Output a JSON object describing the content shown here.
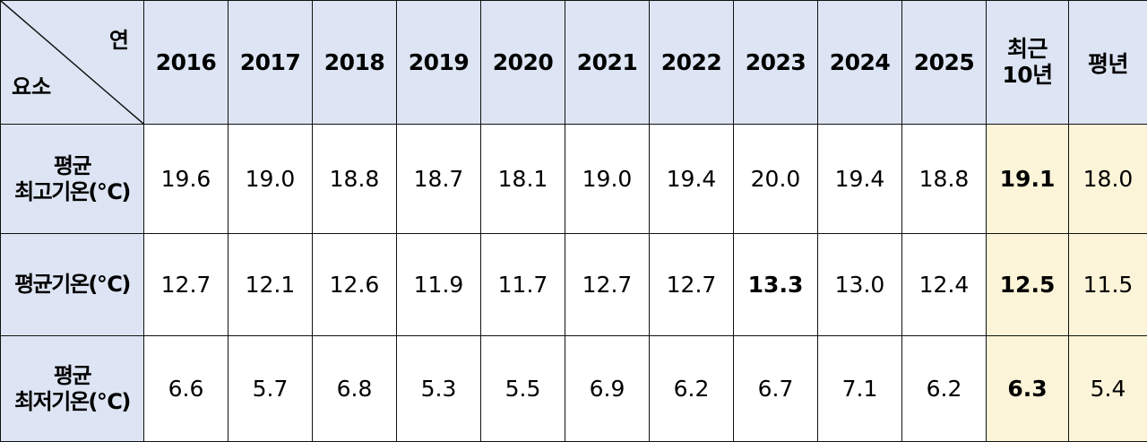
{
  "table": {
    "corner_top": "연",
    "corner_bottom": "요소",
    "headers": [
      "2016",
      "2017",
      "2018",
      "2019",
      "2020",
      "2021",
      "2022",
      "2023",
      "2024",
      "2025"
    ],
    "recent_header_line1": "최근",
    "recent_header_line2": "10년",
    "normal_header": "평년",
    "highlight_color": "#fcf4d8",
    "header_color": "#dde5f4",
    "rows": [
      {
        "label_line1": "평균",
        "label_line2": "최고기온(℃)",
        "values": [
          "19.6",
          "19.0",
          "18.8",
          "18.7",
          "18.1",
          "19.0",
          "19.4",
          "20.0",
          "19.4",
          "18.8"
        ],
        "recent": "19.1",
        "normal": "18.0"
      },
      {
        "label_line1": "평균기온(℃)",
        "label_line2": "",
        "values": [
          "12.7",
          "12.1",
          "12.6",
          "11.9",
          "11.7",
          "12.7",
          "12.7",
          "13.3",
          "13.0",
          "12.4"
        ],
        "recent": "12.5",
        "normal": "11.5"
      },
      {
        "label_line1": "평균",
        "label_line2": "최저기온(℃)",
        "values": [
          "6.6",
          "5.7",
          "6.8",
          "5.3",
          "5.5",
          "6.9",
          "6.2",
          "6.7",
          "7.1",
          "6.2"
        ],
        "recent": "6.3",
        "normal": "5.4"
      }
    ]
  }
}
